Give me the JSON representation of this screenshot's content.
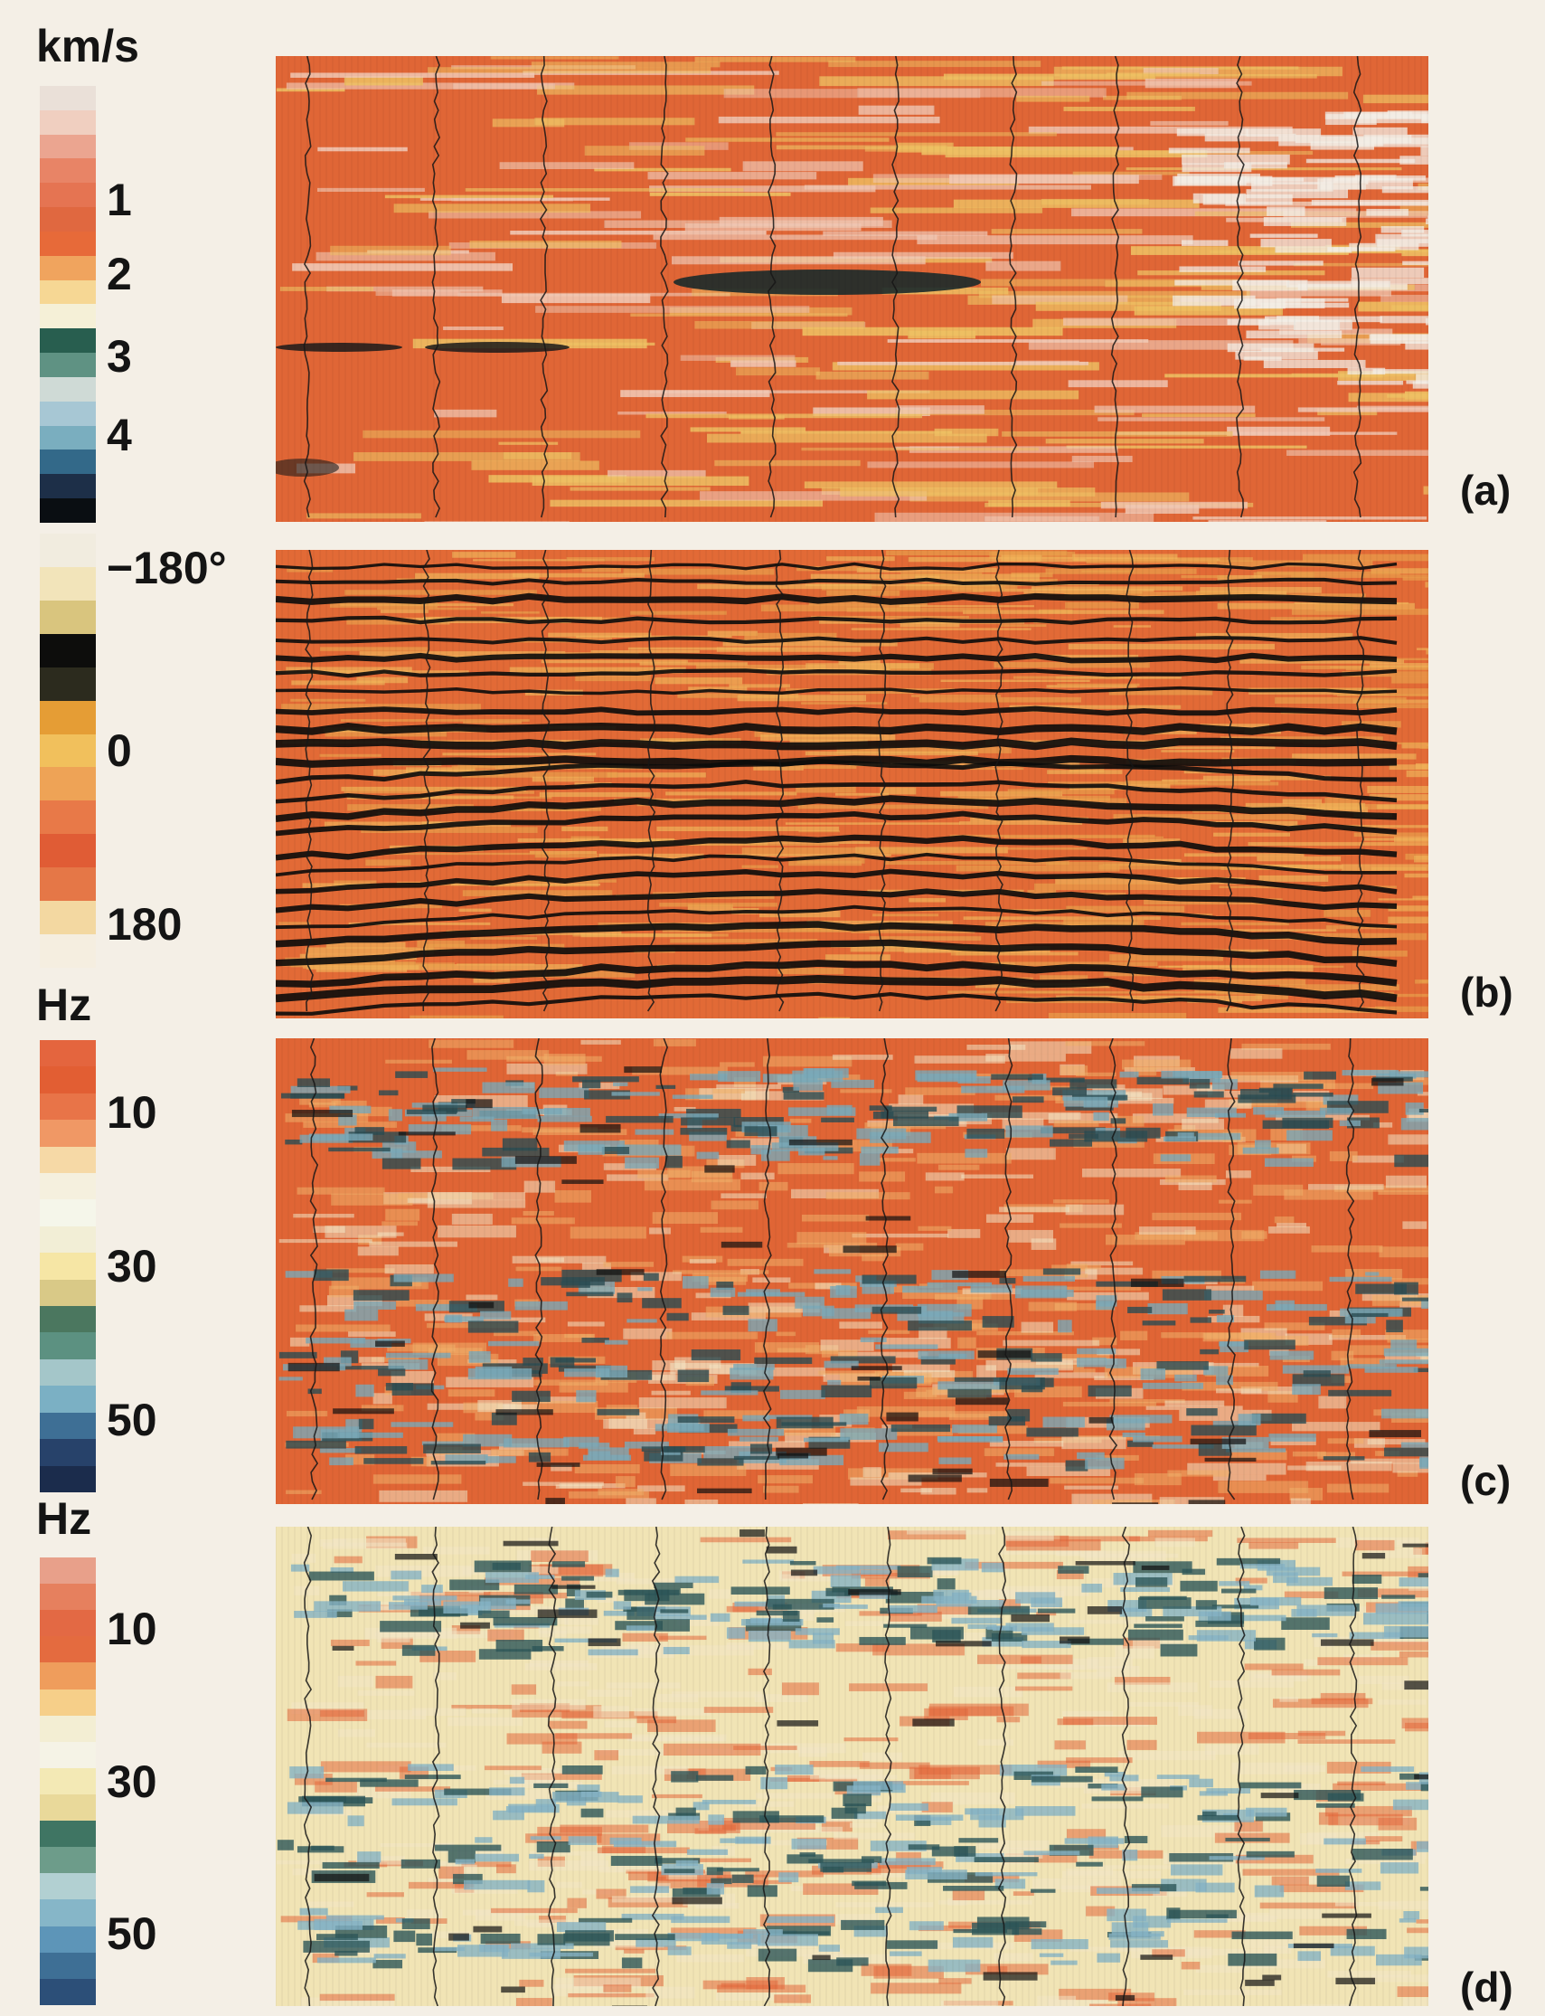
{
  "colorbars": [
    {
      "id": "velocity",
      "unit": "km/s",
      "ticks": [
        {
          "label": "1",
          "fraction": 0.26
        },
        {
          "label": "2",
          "fraction": 0.43
        },
        {
          "label": "3",
          "fraction": 0.62
        },
        {
          "label": "4",
          "fraction": 0.8
        }
      ],
      "colors": [
        "#eae0d8",
        "#f0cfc0",
        "#eba590",
        "#e88466",
        "#e57452",
        "#e06840",
        "#e76a39",
        "#f0a45e",
        "#f6d794",
        "#f5f0d7",
        "#285e4f",
        "#5f9283",
        "#cfdad6",
        "#a7c7d4",
        "#7aaebf",
        "#336989",
        "#1d2f48",
        "#0a0e12"
      ]
    },
    {
      "id": "phase",
      "unit": "",
      "ticks": [
        {
          "label": "−180°",
          "fraction": 0.08
        },
        {
          "label": "0",
          "fraction": 0.5
        },
        {
          "label": "180",
          "fraction": 0.9
        }
      ],
      "colors": [
        "#f1ecdf",
        "#f2e4ba",
        "#d9c57e",
        "#0d0d0c",
        "#2c2b1e",
        "#e59d35",
        "#f1c05c",
        "#eea356",
        "#e87948",
        "#e05c35",
        "#e57747",
        "#f3d8a1",
        "#f5eee0"
      ]
    },
    {
      "id": "freq-c",
      "unit": "Hz",
      "ticks": [
        {
          "label": "10",
          "fraction": 0.16
        },
        {
          "label": "30",
          "fraction": 0.5
        },
        {
          "label": "50",
          "fraction": 0.84
        }
      ],
      "colors": [
        "#e4653e",
        "#e25e33",
        "#e87448",
        "#f09865",
        "#f6d9a6",
        "#f5f0de",
        "#f5f6ea",
        "#f2eed6",
        "#f6e6a5",
        "#d9c987",
        "#4b775f",
        "#5c9181",
        "#a4c6c9",
        "#7bb0c4",
        "#3e6f95",
        "#27426a",
        "#1b2c4c"
      ]
    },
    {
      "id": "freq-d",
      "unit": "Hz",
      "ticks": [
        {
          "label": "10",
          "fraction": 0.16
        },
        {
          "label": "30",
          "fraction": 0.5
        },
        {
          "label": "50",
          "fraction": 0.84
        }
      ],
      "colors": [
        "#e8a08a",
        "#e6805e",
        "#e36944",
        "#e46b3f",
        "#ef9d5c",
        "#f6cf89",
        "#f3eed3",
        "#f5f3e6",
        "#f3e9b5",
        "#e9d99a",
        "#3f7563",
        "#6d9c8a",
        "#b2d0d2",
        "#86b6c8",
        "#5d95b8",
        "#3e6f95",
        "#2c4f78"
      ]
    }
  ],
  "panels": [
    {
      "label": "(a)",
      "style": "velocity",
      "base": "#e06636",
      "seed": 11
    },
    {
      "label": "(b)",
      "style": "phase",
      "base": "#e26a36",
      "seed": 23
    },
    {
      "label": "(c)",
      "style": "freqC",
      "base": "#e06535",
      "seed": 37
    },
    {
      "label": "(d)",
      "style": "freqD",
      "base": "#f1e4b5",
      "seed": 53
    }
  ]
}
